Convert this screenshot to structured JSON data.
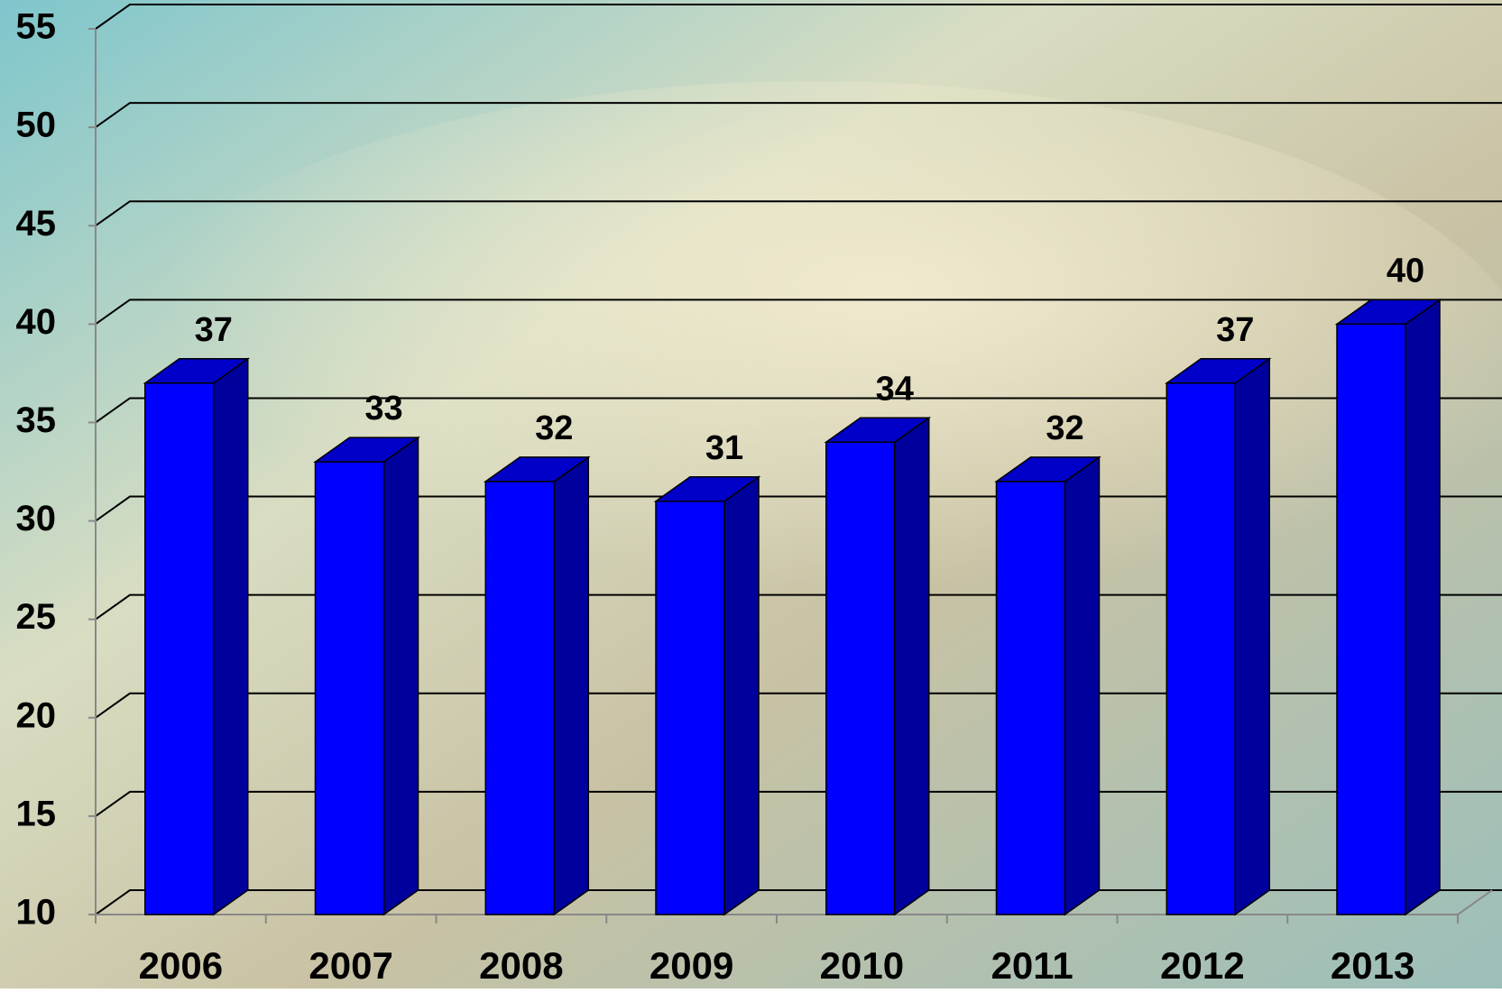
{
  "chart_data": {
    "type": "bar3d",
    "categories": [
      "2006",
      "2007",
      "2008",
      "2009",
      "2010",
      "2011",
      "2012",
      "2013"
    ],
    "values": [
      37,
      33,
      32,
      31,
      34,
      32,
      37,
      40
    ],
    "color": "#0000ff",
    "ylim": [
      10,
      55
    ],
    "yticks": [
      10,
      15,
      20,
      25,
      30,
      35,
      40,
      45,
      50,
      55
    ],
    "grid": true
  }
}
